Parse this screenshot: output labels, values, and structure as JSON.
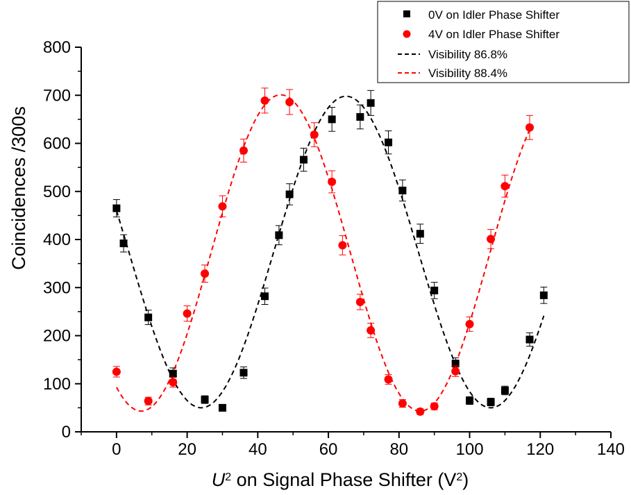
{
  "chart_data": {
    "type": "scatter",
    "xlabel": {
      "prefix": "U",
      "prefix_sup": "2",
      "text": " on Signal Phase Shifter (V",
      "unit_sup": "2",
      "suffix": ")"
    },
    "ylabel": "Coincidences /300s",
    "xlim": [
      -10,
      140
    ],
    "ylim": [
      0,
      800
    ],
    "xticks": [
      0,
      20,
      40,
      60,
      80,
      100,
      120,
      140
    ],
    "yticks": [
      0,
      100,
      200,
      300,
      400,
      500,
      600,
      700,
      800
    ],
    "legend_position": "top-right",
    "grid": false,
    "series": [
      {
        "name": "0V on Idler Phase Shifter",
        "kind": "points",
        "marker": "square",
        "color": "#000000",
        "points": [
          {
            "x": 0,
            "y": 465,
            "err": 18
          },
          {
            "x": 2,
            "y": 392,
            "err": 18
          },
          {
            "x": 9,
            "y": 238,
            "err": 15
          },
          {
            "x": 16,
            "y": 121,
            "err": 12
          },
          {
            "x": 25,
            "y": 67,
            "err": 8
          },
          {
            "x": 30,
            "y": 50,
            "err": 7
          },
          {
            "x": 36,
            "y": 123,
            "err": 12
          },
          {
            "x": 42,
            "y": 282,
            "err": 17
          },
          {
            "x": 46,
            "y": 409,
            "err": 20
          },
          {
            "x": 49,
            "y": 494,
            "err": 22
          },
          {
            "x": 53,
            "y": 566,
            "err": 24
          },
          {
            "x": 61,
            "y": 650,
            "err": 25
          },
          {
            "x": 69,
            "y": 655,
            "err": 25
          },
          {
            "x": 72,
            "y": 684,
            "err": 26
          },
          {
            "x": 77,
            "y": 602,
            "err": 24
          },
          {
            "x": 81,
            "y": 502,
            "err": 22
          },
          {
            "x": 86,
            "y": 412,
            "err": 20
          },
          {
            "x": 90,
            "y": 294,
            "err": 17
          },
          {
            "x": 96,
            "y": 142,
            "err": 12
          },
          {
            "x": 100,
            "y": 65,
            "err": 8
          },
          {
            "x": 106,
            "y": 62,
            "err": 8
          },
          {
            "x": 110,
            "y": 86,
            "err": 9
          },
          {
            "x": 117,
            "y": 192,
            "err": 14
          },
          {
            "x": 121,
            "y": 284,
            "err": 17
          }
        ]
      },
      {
        "name": "4V on Idler Phase Shifter",
        "kind": "points",
        "marker": "circle",
        "color": "#ff0000",
        "points": [
          {
            "x": 0,
            "y": 125,
            "err": 11
          },
          {
            "x": 9,
            "y": 64,
            "err": 8
          },
          {
            "x": 16,
            "y": 103,
            "err": 10
          },
          {
            "x": 20,
            "y": 246,
            "err": 16
          },
          {
            "x": 25,
            "y": 329,
            "err": 18
          },
          {
            "x": 30,
            "y": 469,
            "err": 22
          },
          {
            "x": 36,
            "y": 585,
            "err": 24
          },
          {
            "x": 42,
            "y": 689,
            "err": 26
          },
          {
            "x": 49,
            "y": 686,
            "err": 26
          },
          {
            "x": 56,
            "y": 618,
            "err": 25
          },
          {
            "x": 61,
            "y": 520,
            "err": 23
          },
          {
            "x": 64,
            "y": 388,
            "err": 20
          },
          {
            "x": 69,
            "y": 270,
            "err": 16
          },
          {
            "x": 72,
            "y": 211,
            "err": 15
          },
          {
            "x": 77,
            "y": 109,
            "err": 10
          },
          {
            "x": 81,
            "y": 59,
            "err": 8
          },
          {
            "x": 86,
            "y": 42,
            "err": 6
          },
          {
            "x": 90,
            "y": 53,
            "err": 7
          },
          {
            "x": 96,
            "y": 126,
            "err": 11
          },
          {
            "x": 100,
            "y": 224,
            "err": 15
          },
          {
            "x": 106,
            "y": 401,
            "err": 20
          },
          {
            "x": 110,
            "y": 511,
            "err": 23
          },
          {
            "x": 117,
            "y": 633,
            "err": 25
          }
        ]
      },
      {
        "name": "Visibility 86.8%",
        "kind": "fit",
        "style": "dashed",
        "color": "#000000",
        "x_range": [
          0,
          121
        ],
        "fit": {
          "mean": 374,
          "amplitude": 324,
          "period": 82,
          "peak_x": 65
        }
      },
      {
        "name": "Visibility 88.4%",
        "kind": "fit",
        "style": "dashed",
        "color": "#ff0000",
        "x_range": [
          0,
          117
        ],
        "fit": {
          "mean": 372,
          "amplitude": 329,
          "period": 79,
          "peak_x": 46.5
        }
      }
    ]
  }
}
